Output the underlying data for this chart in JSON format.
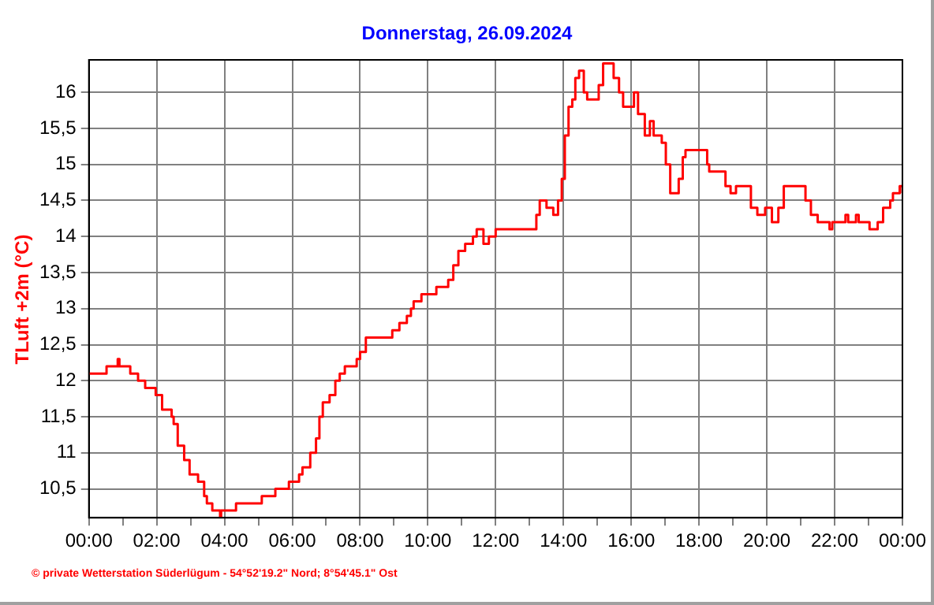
{
  "chart_data": {
    "type": "step",
    "title": "Donnerstag, 26.09.2024",
    "ylabel": "TLuft +2m (°C)",
    "annotations": [
      "© private Wetterstation Süderlügum - 54°52'19.2\" Nord; 8°54'45.1\" Ost"
    ],
    "x": [
      0,
      0.52,
      0.85,
      0.9,
      1.22,
      1.45,
      1.66,
      1.97,
      2.16,
      2.44,
      2.5,
      2.62,
      2.81,
      2.97,
      3.22,
      3.4,
      3.48,
      3.64,
      3.87,
      3.9,
      4.34,
      5.1,
      5.5,
      5.9,
      6.2,
      6.3,
      6.53,
      6.7,
      6.8,
      6.9,
      7.1,
      7.27,
      7.4,
      7.55,
      7.9,
      8.0,
      8.17,
      8.95,
      9.16,
      9.38,
      9.5,
      9.58,
      9.81,
      10.25,
      10.6,
      10.75,
      10.9,
      11.1,
      11.33,
      11.44,
      11.64,
      11.8,
      12.0,
      13.05,
      13.2,
      13.3,
      13.5,
      13.7,
      13.84,
      13.95,
      14.04,
      14.15,
      14.26,
      14.35,
      14.46,
      14.6,
      14.7,
      14.93,
      15.04,
      15.17,
      15.33,
      15.48,
      15.64,
      15.76,
      16.03,
      16.08,
      16.2,
      16.4,
      16.55,
      16.66,
      16.9,
      17.02,
      17.15,
      17.29,
      17.4,
      17.52,
      17.6,
      18.12,
      18.24,
      18.3,
      18.65,
      18.78,
      18.93,
      19.09,
      19.4,
      19.53,
      19.72,
      19.87,
      19.95,
      20.15,
      20.34,
      20.5,
      20.9,
      21.14,
      21.3,
      21.5,
      21.85,
      21.93,
      22.32,
      22.4,
      22.63,
      22.71,
      23.03,
      23.27,
      23.43,
      23.64,
      23.72,
      23.92,
      24
    ],
    "series": [
      {
        "color": "#ff0000",
        "values": [
          12.1,
          12.2,
          12.3,
          12.2,
          12.1,
          12.0,
          11.9,
          11.8,
          11.6,
          11.5,
          11.4,
          11.1,
          10.9,
          10.7,
          10.6,
          10.4,
          10.3,
          10.2,
          10.1,
          10.2,
          10.3,
          10.4,
          10.5,
          10.6,
          10.7,
          10.8,
          11.0,
          11.2,
          11.5,
          11.7,
          11.8,
          12.0,
          12.1,
          12.2,
          12.3,
          12.4,
          12.6,
          12.7,
          12.8,
          12.9,
          13.0,
          13.1,
          13.2,
          13.3,
          13.4,
          13.6,
          13.8,
          13.9,
          14.0,
          14.1,
          13.9,
          14.0,
          14.1,
          14.1,
          14.3,
          14.5,
          14.4,
          14.3,
          14.5,
          14.8,
          15.4,
          15.8,
          15.9,
          16.2,
          16.3,
          16.0,
          15.9,
          15.9,
          16.1,
          16.4,
          16.4,
          16.2,
          16.0,
          15.8,
          15.8,
          16.0,
          15.7,
          15.4,
          15.6,
          15.4,
          15.3,
          15.0,
          14.6,
          14.6,
          14.8,
          15.1,
          15.2,
          15.2,
          15.0,
          14.9,
          14.9,
          14.7,
          14.6,
          14.7,
          14.7,
          14.4,
          14.3,
          14.3,
          14.4,
          14.2,
          14.4,
          14.7,
          14.7,
          14.5,
          14.3,
          14.2,
          14.1,
          14.2,
          14.3,
          14.2,
          14.3,
          14.2,
          14.1,
          14.2,
          14.4,
          14.5,
          14.6,
          14.7,
          14.6
        ]
      }
    ],
    "xlim": [
      0,
      24
    ],
    "ylim": [
      10.1,
      16.45
    ],
    "xticks": [
      {
        "value": 0,
        "label": "00:00"
      },
      {
        "value": 1,
        "label": null
      },
      {
        "value": 2,
        "label": "02:00"
      },
      {
        "value": 3,
        "label": null
      },
      {
        "value": 4,
        "label": "04:00"
      },
      {
        "value": 5,
        "label": null
      },
      {
        "value": 6,
        "label": "06:00"
      },
      {
        "value": 7,
        "label": null
      },
      {
        "value": 8,
        "label": "08:00"
      },
      {
        "value": 9,
        "label": null
      },
      {
        "value": 10,
        "label": "10:00"
      },
      {
        "value": 11,
        "label": null
      },
      {
        "value": 12,
        "label": "12:00"
      },
      {
        "value": 13,
        "label": null
      },
      {
        "value": 14,
        "label": "14:00"
      },
      {
        "value": 15,
        "label": null
      },
      {
        "value": 16,
        "label": "16:00"
      },
      {
        "value": 17,
        "label": null
      },
      {
        "value": 18,
        "label": "18:00"
      },
      {
        "value": 19,
        "label": null
      },
      {
        "value": 20,
        "label": "20:00"
      },
      {
        "value": 21,
        "label": null
      },
      {
        "value": 22,
        "label": "22:00"
      },
      {
        "value": 23,
        "label": null
      },
      {
        "value": 24,
        "label": "00:00"
      }
    ],
    "yticks": [
      {
        "value": 10.5,
        "label": "10,5"
      },
      11,
      {
        "value": 11.5,
        "label": "11,5"
      },
      12,
      {
        "value": 12.5,
        "label": "12,5"
      },
      13,
      {
        "value": 13.5,
        "label": "13,5"
      },
      14,
      {
        "value": 14.5,
        "label": "14,5"
      },
      15,
      {
        "value": 15.5,
        "label": "15,5"
      },
      16
    ],
    "grid": true,
    "legend": false,
    "marker": "none",
    "line_style": "solid"
  }
}
